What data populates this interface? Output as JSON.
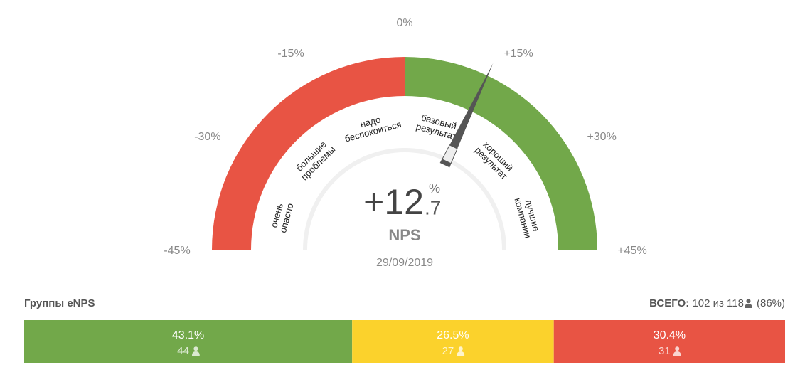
{
  "gauge": {
    "ticks": [
      {
        "value": -45,
        "label": "-45%"
      },
      {
        "value": -30,
        "label": "-30%"
      },
      {
        "value": -15,
        "label": "-15%"
      },
      {
        "value": 0,
        "label": "0%"
      },
      {
        "value": 15,
        "label": "+15%"
      },
      {
        "value": 30,
        "label": "+30%"
      },
      {
        "value": 45,
        "label": "+45%"
      }
    ],
    "range": [
      -45,
      45
    ],
    "segments": [
      {
        "from": -45,
        "to": 0,
        "color": "#e85444"
      },
      {
        "from": 0,
        "to": 45,
        "color": "#72a84a"
      }
    ],
    "zones": [
      [
        "очень",
        "опасно"
      ],
      [
        "большие",
        "проблемы"
      ],
      [
        "надо",
        "беспокоиться"
      ],
      [
        "базовый",
        "результат"
      ],
      [
        "хороший",
        "результат"
      ],
      [
        "лучшие",
        "компании"
      ]
    ],
    "value": 12.7,
    "value_label": {
      "whole": "+12",
      "fraction": ".7",
      "unit": "%"
    },
    "metric": "NPS",
    "date": "29/09/2019"
  },
  "groups": {
    "title": "Группы eNPS",
    "total": {
      "label": "ВСЕГО:",
      "count": 102,
      "separator": "из",
      "of": 118,
      "share": {
        "value": 86,
        "label": "(86%)"
      }
    },
    "segments": [
      {
        "value": 43.1,
        "value_label": "43.1%",
        "count": 44,
        "color": "#72a84a"
      },
      {
        "value": 26.5,
        "value_label": "26.5%",
        "count": 27,
        "color": "#fbd22c"
      },
      {
        "value": 30.4,
        "value_label": "30.4%",
        "count": 31,
        "color": "#e85444"
      }
    ]
  }
}
